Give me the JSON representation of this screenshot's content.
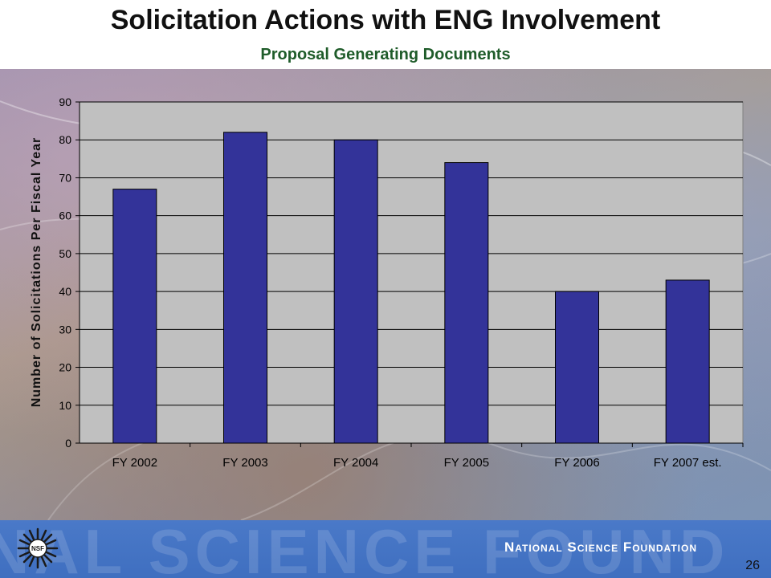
{
  "slide": {
    "title": "Solicitation Actions with ENG Involvement",
    "subtitle": "Proposal Generating Documents",
    "page_number": "26"
  },
  "footer": {
    "org_name": "National Science Foundation",
    "watermark": "NAL SCIENCE FOUND",
    "logo_text": "NSF"
  },
  "colors": {
    "bar": "#333399",
    "plot_area": "#c0c0c0",
    "title": "#111111",
    "subtitle": "#1f5c2a",
    "footer": "#4a79c8"
  },
  "chart_data": {
    "type": "bar",
    "categories": [
      "FY 2002",
      "FY 2003",
      "FY 2004",
      "FY 2005",
      "FY 2006",
      "FY 2007 est."
    ],
    "values": [
      67,
      82,
      80,
      74,
      40,
      43
    ],
    "ylabel": "Number of Solicitations Per Fiscal Year",
    "xlabel": "",
    "ylim": [
      0,
      90
    ],
    "yticks": [
      "0",
      "10",
      "20",
      "30",
      "40",
      "50",
      "60",
      "70",
      "80",
      "90"
    ],
    "grid": true,
    "legend": "none"
  }
}
